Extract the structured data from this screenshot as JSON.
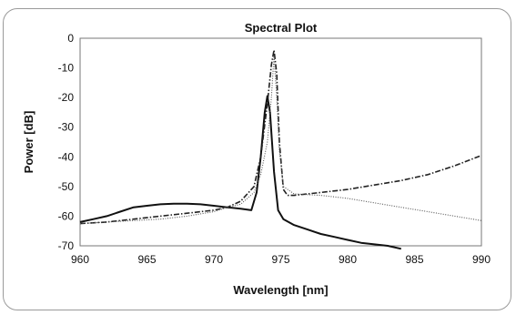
{
  "chart_data": {
    "type": "line",
    "title": "Spectral Plot",
    "xlabel": "Wavelength [nm]",
    "ylabel": "Power [dB]",
    "xlim": [
      960,
      990
    ],
    "ylim": [
      -70,
      0
    ],
    "xticks": [
      960,
      965,
      970,
      975,
      980,
      985,
      990
    ],
    "yticks": [
      0,
      -10,
      -20,
      -30,
      -40,
      -50,
      -60,
      -70
    ],
    "grid": false,
    "legend": "none",
    "series": [
      {
        "style": "solid",
        "color": "#111111",
        "points": [
          [
            960,
            -62
          ],
          [
            961,
            -61
          ],
          [
            962,
            -60
          ],
          [
            963,
            -58.5
          ],
          [
            964,
            -57
          ],
          [
            965,
            -56.5
          ],
          [
            966,
            -56
          ],
          [
            967,
            -55.8
          ],
          [
            968,
            -55.8
          ],
          [
            969,
            -56
          ],
          [
            970,
            -56.5
          ],
          [
            971,
            -57
          ],
          [
            972,
            -57.5
          ],
          [
            972.8,
            -58
          ],
          [
            973.2,
            -52
          ],
          [
            973.5,
            -40
          ],
          [
            973.8,
            -25
          ],
          [
            974.0,
            -19.5
          ],
          [
            974.2,
            -25
          ],
          [
            974.5,
            -45
          ],
          [
            974.8,
            -58
          ],
          [
            975.2,
            -61
          ],
          [
            976,
            -63
          ],
          [
            977,
            -64.5
          ],
          [
            978,
            -66
          ],
          [
            979,
            -67
          ],
          [
            980,
            -68
          ],
          [
            981,
            -69
          ],
          [
            982,
            -69.5
          ],
          [
            983,
            -70
          ],
          [
            984,
            -71
          ]
        ]
      },
      {
        "style": "dash-dot",
        "color": "#222222",
        "points": [
          [
            960,
            -62.5
          ],
          [
            962,
            -62
          ],
          [
            964,
            -61
          ],
          [
            966,
            -60
          ],
          [
            968,
            -59
          ],
          [
            970,
            -58
          ],
          [
            971,
            -57
          ],
          [
            972,
            -55
          ],
          [
            973,
            -50
          ],
          [
            973.5,
            -40
          ],
          [
            974,
            -22
          ],
          [
            974.3,
            -9
          ],
          [
            974.5,
            -4
          ],
          [
            974.7,
            -12
          ],
          [
            974.9,
            -35
          ],
          [
            975.2,
            -51
          ],
          [
            975.5,
            -53
          ],
          [
            976,
            -53
          ],
          [
            978,
            -52
          ],
          [
            980,
            -51
          ],
          [
            982,
            -49.5
          ],
          [
            984,
            -48
          ],
          [
            986,
            -46
          ],
          [
            988,
            -43
          ],
          [
            990,
            -39.5
          ]
        ]
      },
      {
        "style": "dotted",
        "color": "#555555",
        "points": [
          [
            960,
            -62.5
          ],
          [
            962,
            -62
          ],
          [
            964,
            -61.5
          ],
          [
            966,
            -61
          ],
          [
            968,
            -60
          ],
          [
            970,
            -58.5
          ],
          [
            971,
            -57
          ],
          [
            972,
            -56
          ],
          [
            973,
            -52
          ],
          [
            973.5,
            -46
          ],
          [
            974,
            -35
          ],
          [
            974.3,
            -20
          ],
          [
            974.5,
            -6
          ],
          [
            974.7,
            -20
          ],
          [
            974.9,
            -38
          ],
          [
            975.2,
            -50
          ],
          [
            976,
            -52.5
          ],
          [
            978,
            -53
          ],
          [
            980,
            -54
          ],
          [
            982,
            -55.5
          ],
          [
            984,
            -57
          ],
          [
            986,
            -58.5
          ],
          [
            988,
            -60
          ],
          [
            990,
            -61.5
          ]
        ]
      }
    ]
  }
}
